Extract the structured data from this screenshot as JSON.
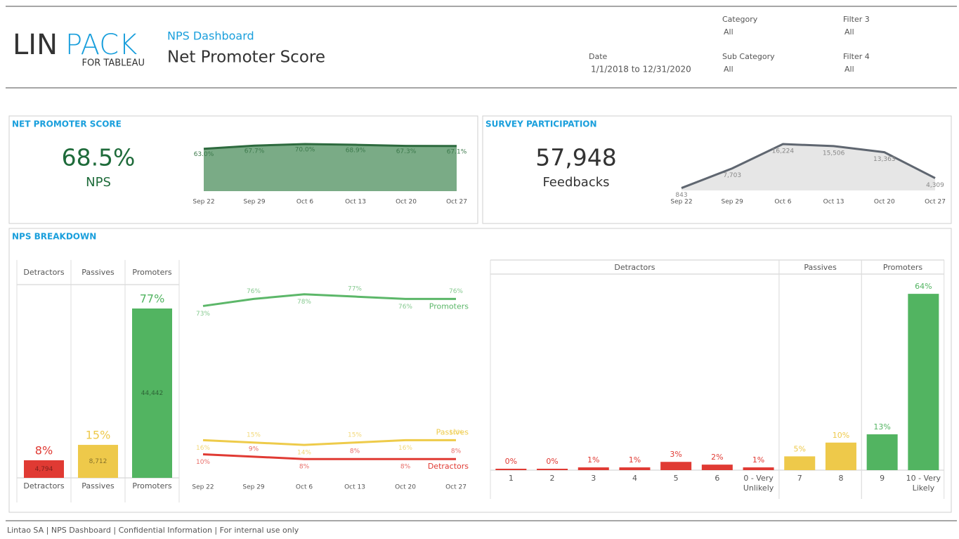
{
  "header": {
    "logo": {
      "lin": "LIN",
      "pack": "PACK",
      "sub": "FOR TABLEAU"
    },
    "subtitle": "NPS Dashboard",
    "title": "Net Promoter Score"
  },
  "filters": [
    {
      "label": "Category",
      "value": "All"
    },
    {
      "label": "Filter 3",
      "value": "All"
    },
    {
      "label": "Date",
      "value": "1/1/2018 to 12/31/2020"
    },
    {
      "label": "Sub Category",
      "value": "All"
    },
    {
      "label": "Filter 4",
      "value": "All"
    }
  ],
  "section_title": "NPS BREAKDOWN",
  "footer": "Lintao SA | NPS Dashboard | Confidential Information | For internal use only",
  "chart_data": [
    {
      "type": "area",
      "title": "NET PROMOTER SCORE",
      "kpi": "68.5%",
      "kpi_label": "NPS",
      "categories": [
        "Sep 22",
        "Sep 29",
        "Oct 6",
        "Oct 13",
        "Oct 20",
        "Oct 27"
      ],
      "values": [
        63.0,
        67.7,
        70.0,
        68.9,
        67.3,
        67.1
      ],
      "value_labels": [
        "63.0%",
        "67.7%",
        "70.0%",
        "68.9%",
        "67.3%",
        "67.1%"
      ],
      "color": "#7aab86",
      "line_color": "#2d6a3e"
    },
    {
      "type": "area",
      "title": "SURVEY PARTICIPATION",
      "kpi": "57,948",
      "kpi_label": "Feedbacks",
      "categories": [
        "Sep 22",
        "Sep 29",
        "Oct 6",
        "Oct 13",
        "Oct 20",
        "Oct 27"
      ],
      "values": [
        843,
        7703,
        16224,
        15506,
        13363,
        4309
      ],
      "value_labels": [
        "843",
        "7,703",
        "16,224",
        "15,506",
        "13,363",
        "4,309"
      ],
      "color": "#e6e6e6",
      "line_color": "#5f6670"
    },
    {
      "type": "bar",
      "categories": [
        "Detractors",
        "Passives",
        "Promoters"
      ],
      "values": [
        8,
        15,
        77
      ],
      "value_labels": [
        "8%",
        "15%",
        "77%"
      ],
      "counts": [
        4794,
        8712,
        44442
      ],
      "count_labels": [
        "4,794",
        "8,712",
        "44,442"
      ],
      "colors": [
        "#e03a33",
        "#eec94a",
        "#52b461"
      ]
    },
    {
      "type": "line",
      "categories": [
        "Sep 22",
        "Sep 29",
        "Oct 6",
        "Oct 13",
        "Oct 20",
        "Oct 27"
      ],
      "series": [
        {
          "name": "Promoters",
          "color": "#5cb769",
          "values": [
            73,
            76,
            78,
            77,
            76,
            76
          ],
          "value_labels": [
            "73%",
            "76%",
            "78%",
            "77%",
            "76%",
            "76%"
          ]
        },
        {
          "name": "Passives",
          "color": "#eecb4a",
          "values": [
            16,
            15,
            14,
            15,
            16,
            16
          ],
          "value_labels": [
            "16%",
            "15%",
            "14%",
            "15%",
            "16%",
            "16%"
          ]
        },
        {
          "name": "Detractors",
          "color": "#e03a33",
          "values": [
            10,
            9,
            8,
            8,
            8,
            8
          ],
          "value_labels": [
            "10%",
            "9%",
            "8%",
            "8%",
            "8%",
            "8%"
          ]
        }
      ]
    },
    {
      "type": "bar",
      "series": [
        {
          "name": "Detractors",
          "color": "#e03a33",
          "categories": [
            "1",
            "2",
            "3",
            "4",
            "5",
            "6",
            "0 - Very Unlikely"
          ],
          "values": [
            0,
            0,
            1,
            1,
            3,
            2,
            1
          ],
          "value_labels": [
            "0%",
            "0%",
            "1%",
            "1%",
            "3%",
            "2%",
            "1%"
          ]
        },
        {
          "name": "Passives",
          "color": "#eec94a",
          "categories": [
            "7",
            "8"
          ],
          "values": [
            5,
            10
          ],
          "value_labels": [
            "5%",
            "10%"
          ]
        },
        {
          "name": "Promoters",
          "color": "#52b461",
          "categories": [
            "9",
            "10 - Very Likely"
          ],
          "values": [
            13,
            64
          ],
          "value_labels": [
            "13%",
            "64%"
          ]
        }
      ]
    }
  ]
}
